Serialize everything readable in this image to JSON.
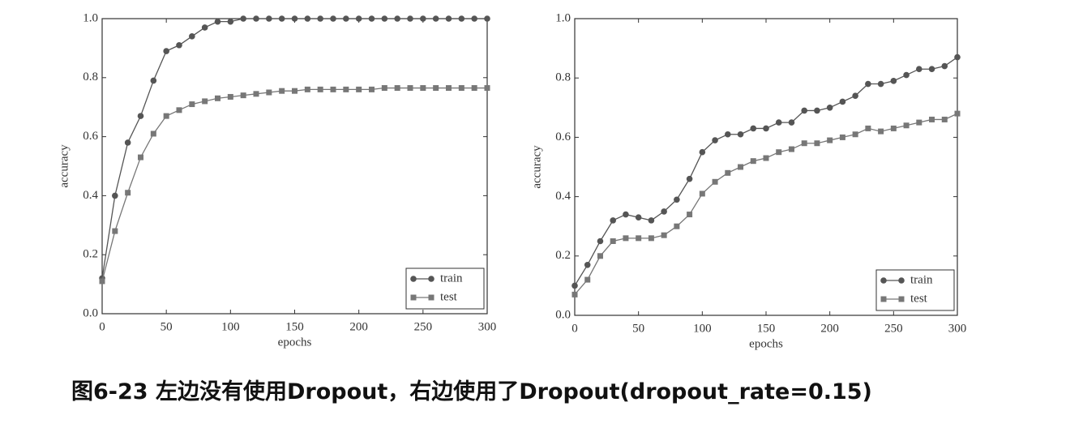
{
  "caption": "图6-23 左边没有使用Dropout，右边使用了Dropout(dropout_rate=0.15)",
  "chart_data": [
    {
      "type": "line",
      "xlabel": "epochs",
      "ylabel": "accuracy",
      "x": [
        0,
        10,
        20,
        30,
        40,
        50,
        60,
        70,
        80,
        90,
        100,
        110,
        120,
        130,
        140,
        150,
        160,
        170,
        180,
        190,
        200,
        210,
        220,
        230,
        240,
        250,
        260,
        270,
        280,
        290,
        300
      ],
      "series": [
        {
          "name": "train",
          "color": "#555555",
          "marker": "circle",
          "values": [
            0.12,
            0.4,
            0.58,
            0.67,
            0.79,
            0.89,
            0.91,
            0.94,
            0.97,
            0.99,
            0.99,
            1.0,
            1.0,
            1.0,
            1.0,
            1.0,
            1.0,
            1.0,
            1.0,
            1.0,
            1.0,
            1.0,
            1.0,
            1.0,
            1.0,
            1.0,
            1.0,
            1.0,
            1.0,
            1.0,
            1.0
          ]
        },
        {
          "name": "test",
          "color": "#777777",
          "marker": "square",
          "values": [
            0.11,
            0.28,
            0.41,
            0.53,
            0.61,
            0.67,
            0.69,
            0.71,
            0.72,
            0.73,
            0.735,
            0.74,
            0.745,
            0.75,
            0.755,
            0.755,
            0.76,
            0.76,
            0.76,
            0.76,
            0.76,
            0.76,
            0.765,
            0.765,
            0.765,
            0.765,
            0.765,
            0.765,
            0.765,
            0.765,
            0.765
          ]
        }
      ],
      "xlim": [
        0,
        300
      ],
      "xticks": [
        0,
        50,
        100,
        150,
        200,
        250,
        300
      ],
      "ylim": [
        0,
        1
      ],
      "yticks": [
        {
          "value": 0,
          "label": "0.0"
        },
        0.2,
        0.4,
        0.6,
        0.8,
        {
          "value": 1,
          "label": "1.0"
        }
      ],
      "legend": "lower right"
    },
    {
      "type": "line",
      "xlabel": "epochs",
      "ylabel": "accuracy",
      "x": [
        0,
        10,
        20,
        30,
        40,
        50,
        60,
        70,
        80,
        90,
        100,
        110,
        120,
        130,
        140,
        150,
        160,
        170,
        180,
        190,
        200,
        210,
        220,
        230,
        240,
        250,
        260,
        270,
        280,
        290,
        300
      ],
      "series": [
        {
          "name": "train",
          "color": "#555555",
          "marker": "circle",
          "values": [
            0.1,
            0.17,
            0.25,
            0.32,
            0.34,
            0.33,
            0.32,
            0.35,
            0.39,
            0.46,
            0.55,
            0.59,
            0.61,
            0.61,
            0.63,
            0.63,
            0.65,
            0.65,
            0.69,
            0.69,
            0.7,
            0.72,
            0.74,
            0.78,
            0.78,
            0.79,
            0.81,
            0.83,
            0.83,
            0.84,
            0.87
          ]
        },
        {
          "name": "test",
          "color": "#777777",
          "marker": "square",
          "values": [
            0.07,
            0.12,
            0.2,
            0.25,
            0.26,
            0.26,
            0.26,
            0.27,
            0.3,
            0.34,
            0.41,
            0.45,
            0.48,
            0.5,
            0.52,
            0.53,
            0.55,
            0.56,
            0.58,
            0.58,
            0.59,
            0.6,
            0.61,
            0.63,
            0.62,
            0.63,
            0.64,
            0.65,
            0.66,
            0.66,
            0.68
          ]
        }
      ],
      "xlim": [
        0,
        300
      ],
      "xticks": [
        0,
        50,
        100,
        150,
        200,
        250,
        300
      ],
      "ylim": [
        0,
        1
      ],
      "yticks": [
        {
          "value": 0,
          "label": "0.0"
        },
        0.2,
        0.4,
        0.6,
        0.8,
        {
          "value": 1,
          "label": "1.0"
        }
      ],
      "legend": "lower right"
    }
  ]
}
